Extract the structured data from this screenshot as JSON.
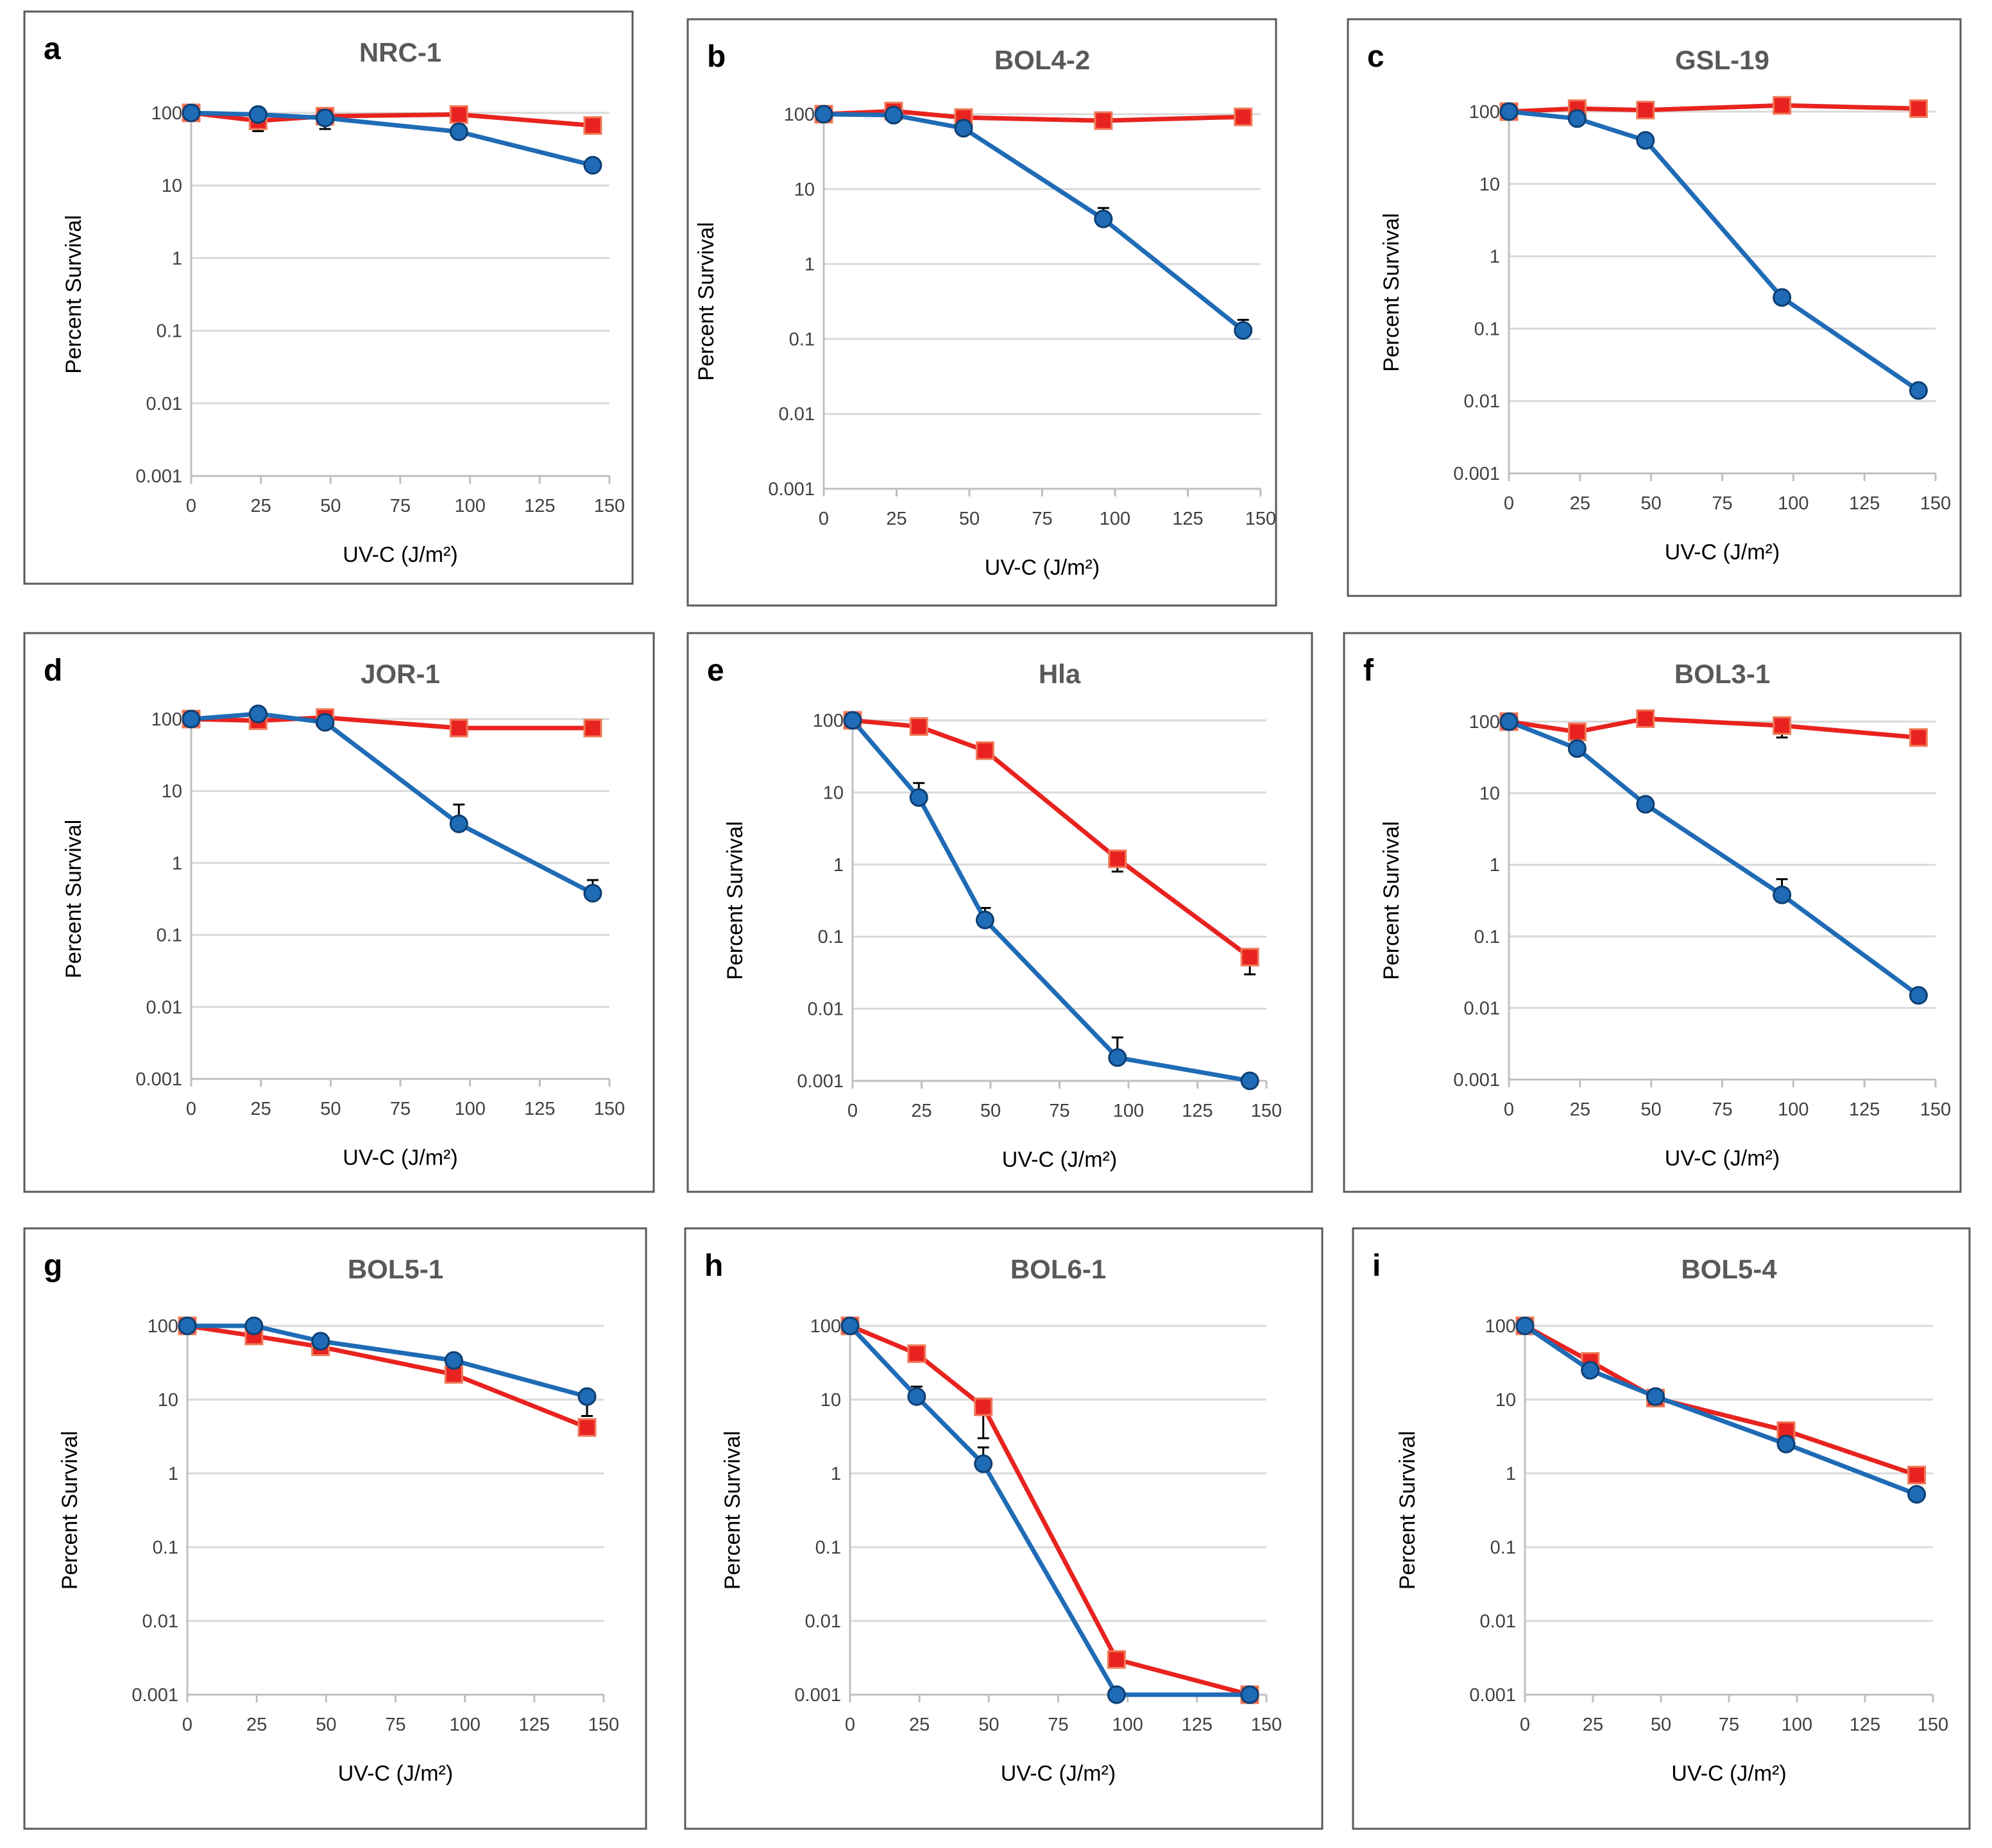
{
  "colors": {
    "series_1": "#e8231f",
    "series_2": "#1f6bb5",
    "square_edge": "#f07a5a",
    "circle_edge": "#0d3f73"
  },
  "common": {
    "xlabel": "UV-C (J/m²)",
    "ylabel": "Percent Survival"
  },
  "chart_data": [
    {
      "type": "line",
      "letter": "a",
      "title": "NRC-1",
      "x": [
        0,
        24,
        48,
        96,
        144
      ],
      "x_ticks": [
        "0",
        "25",
        "50",
        "75",
        "100",
        "125",
        "150"
      ],
      "xlim": [
        0,
        150
      ],
      "y_ticks": [
        "100",
        "10",
        "1",
        "0.1",
        "0.01",
        "0.001"
      ],
      "ylim": [
        0.001,
        100
      ],
      "yscale": "log",
      "xlabel": "UV-C (J/m²)",
      "ylabel": "Percent Survival",
      "series": [
        {
          "name": "squares",
          "marker": "square",
          "values": [
            100,
            78,
            90,
            95,
            67
          ],
          "errors_up": [
            0,
            0,
            0,
            0,
            0
          ],
          "errors_down": [
            0,
            22,
            0,
            0,
            0
          ]
        },
        {
          "name": "circles",
          "marker": "circle",
          "values": [
            100,
            95,
            85,
            55,
            19
          ],
          "errors_up": [
            0,
            0,
            0,
            0,
            0
          ],
          "errors_down": [
            0,
            0,
            25,
            0,
            0
          ]
        }
      ]
    },
    {
      "type": "line",
      "letter": "b",
      "title": "BOL4-2",
      "x": [
        0,
        24,
        48,
        96,
        144
      ],
      "x_ticks": [
        "0",
        "25",
        "50",
        "75",
        "100",
        "125",
        "150"
      ],
      "xlim": [
        0,
        150
      ],
      "y_ticks": [
        "100",
        "10",
        "1",
        "0.1",
        "0.01",
        "0.001"
      ],
      "ylim": [
        0.001,
        100
      ],
      "yscale": "log",
      "xlabel": "UV-C (J/m²)",
      "ylabel": "Percent Survival",
      "series": [
        {
          "name": "squares",
          "marker": "square",
          "values": [
            100,
            110,
            90,
            82,
            92
          ],
          "errors_up": [
            0,
            0,
            0,
            0,
            0
          ],
          "errors_down": [
            0,
            0,
            0,
            0,
            0
          ]
        },
        {
          "name": "circles",
          "marker": "circle",
          "values": [
            100,
            97,
            65,
            4,
            0.13
          ],
          "errors_up": [
            0,
            0,
            0,
            1.6,
            0.05
          ],
          "errors_down": [
            0,
            0,
            0,
            0,
            0
          ]
        }
      ]
    },
    {
      "type": "line",
      "letter": "c",
      "title": "GSL-19",
      "x": [
        0,
        24,
        48,
        96,
        144
      ],
      "x_ticks": [
        "0",
        "25",
        "50",
        "75",
        "100",
        "125",
        "150"
      ],
      "xlim": [
        0,
        150
      ],
      "y_ticks": [
        "100",
        "10",
        "1",
        "0.1",
        "0.01",
        "0.001"
      ],
      "ylim": [
        0.001,
        100
      ],
      "yscale": "log",
      "xlabel": "UV-C (J/m²)",
      "ylabel": "Percent Survival",
      "series": [
        {
          "name": "squares",
          "marker": "square",
          "values": [
            100,
            110,
            105,
            122,
            110
          ],
          "errors_up": [
            0,
            0,
            0,
            0,
            0
          ],
          "errors_down": [
            0,
            0,
            0,
            0,
            0
          ]
        },
        {
          "name": "circles",
          "marker": "circle",
          "values": [
            100,
            80,
            40,
            0.27,
            0.014
          ],
          "errors_up": [
            0,
            0,
            0,
            0,
            0.003
          ],
          "errors_down": [
            0,
            0,
            0,
            0,
            0
          ]
        }
      ]
    },
    {
      "type": "line",
      "letter": "d",
      "title": "JOR-1",
      "x": [
        0,
        24,
        48,
        96,
        144
      ],
      "x_ticks": [
        "0",
        "25",
        "50",
        "75",
        "100",
        "125",
        "150"
      ],
      "xlim": [
        0,
        150
      ],
      "y_ticks": [
        "100",
        "10",
        "1",
        "0.1",
        "0.01",
        "0.001"
      ],
      "ylim": [
        0.001,
        100
      ],
      "yscale": "log",
      "xlabel": "UV-C (J/m²)",
      "ylabel": "Percent Survival",
      "series": [
        {
          "name": "squares",
          "marker": "square",
          "values": [
            100,
            95,
            105,
            75,
            75
          ],
          "errors_up": [
            0,
            0,
            0,
            0,
            0
          ],
          "errors_down": [
            0,
            0,
            0,
            0,
            0
          ]
        },
        {
          "name": "circles",
          "marker": "circle",
          "values": [
            100,
            118,
            90,
            3.5,
            0.38
          ],
          "errors_up": [
            0,
            0,
            0,
            3,
            0.2
          ],
          "errors_down": [
            0,
            0,
            0,
            0,
            0
          ]
        }
      ]
    },
    {
      "type": "line",
      "letter": "e",
      "title": "Hla",
      "x": [
        0,
        24,
        48,
        96,
        144
      ],
      "x_ticks": [
        "0",
        "25",
        "50",
        "75",
        "100",
        "125",
        "150"
      ],
      "xlim": [
        0,
        150
      ],
      "y_ticks": [
        "100",
        "10",
        "1",
        "0.1",
        "0.01",
        "0.001"
      ],
      "ylim": [
        0.001,
        100
      ],
      "yscale": "log",
      "xlabel": "UV-C (J/m²)",
      "ylabel": "Percent Survival",
      "series": [
        {
          "name": "squares",
          "marker": "square",
          "values": [
            100,
            82,
            38,
            1.2,
            0.052
          ],
          "errors_up": [
            0,
            0,
            0,
            0,
            0
          ],
          "errors_down": [
            0,
            0,
            0,
            0.4,
            0.022
          ]
        },
        {
          "name": "circles",
          "marker": "circle",
          "values": [
            100,
            8.5,
            0.17,
            0.0021,
            0.001
          ],
          "errors_up": [
            0,
            5,
            0.08,
            0.0019,
            0
          ],
          "errors_down": [
            0,
            0,
            0,
            0,
            0
          ]
        }
      ]
    },
    {
      "type": "line",
      "letter": "f",
      "title": "BOL3-1",
      "x": [
        0,
        24,
        48,
        96,
        144
      ],
      "x_ticks": [
        "0",
        "25",
        "50",
        "75",
        "100",
        "125",
        "150"
      ],
      "xlim": [
        0,
        150
      ],
      "y_ticks": [
        "100",
        "10",
        "1",
        "0.1",
        "0.01",
        "0.001"
      ],
      "ylim": [
        0.001,
        100
      ],
      "yscale": "log",
      "xlabel": "UV-C (J/m²)",
      "ylabel": "Percent Survival",
      "series": [
        {
          "name": "squares",
          "marker": "square",
          "values": [
            100,
            72,
            110,
            88,
            60
          ],
          "errors_up": [
            0,
            0,
            0,
            0,
            0
          ],
          "errors_down": [
            0,
            0,
            0,
            28,
            0
          ]
        },
        {
          "name": "circles",
          "marker": "circle",
          "values": [
            100,
            42,
            7,
            0.38,
            0.015
          ],
          "errors_up": [
            0,
            0,
            0,
            0.25,
            0
          ],
          "errors_down": [
            0,
            0,
            0,
            0,
            0
          ]
        }
      ]
    },
    {
      "type": "line",
      "letter": "g",
      "title": "BOL5-1",
      "x": [
        0,
        24,
        48,
        96,
        144
      ],
      "x_ticks": [
        "0",
        "25",
        "50",
        "75",
        "100",
        "125",
        "150"
      ],
      "xlim": [
        0,
        150
      ],
      "y_ticks": [
        "100",
        "10",
        "1",
        "0.1",
        "0.01",
        "0.001"
      ],
      "ylim": [
        0.001,
        100
      ],
      "yscale": "log",
      "xlabel": "UV-C (J/m²)",
      "ylabel": "Percent Survival",
      "series": [
        {
          "name": "squares",
          "marker": "square",
          "values": [
            100,
            73,
            52,
            22,
            4.2
          ],
          "errors_up": [
            0,
            0,
            0,
            0,
            0
          ],
          "errors_down": [
            0,
            0,
            0,
            0,
            0
          ]
        },
        {
          "name": "circles",
          "marker": "circle",
          "values": [
            100,
            100,
            62,
            34,
            11
          ],
          "errors_up": [
            0,
            0,
            0,
            0,
            0
          ],
          "errors_down": [
            0,
            0,
            0,
            0,
            5
          ]
        }
      ]
    },
    {
      "type": "line",
      "letter": "h",
      "title": "BOL6-1",
      "x": [
        0,
        24,
        48,
        96,
        144
      ],
      "x_ticks": [
        "0",
        "25",
        "50",
        "75",
        "100",
        "125",
        "150"
      ],
      "xlim": [
        0,
        150
      ],
      "y_ticks": [
        "100",
        "10",
        "1",
        "0.1",
        "0.01",
        "0.001"
      ],
      "ylim": [
        0.001,
        100
      ],
      "yscale": "log",
      "xlabel": "UV-C (J/m²)",
      "ylabel": "Percent Survival",
      "series": [
        {
          "name": "squares",
          "marker": "square",
          "values": [
            100,
            42,
            8,
            0.003,
            0.001
          ],
          "errors_up": [
            0,
            0,
            0,
            0,
            0
          ],
          "errors_down": [
            0,
            0,
            5,
            0,
            0
          ]
        },
        {
          "name": "circles",
          "marker": "circle",
          "values": [
            100,
            11,
            1.35,
            0.001,
            0.001
          ],
          "errors_up": [
            0,
            4,
            0.9,
            0,
            0
          ],
          "errors_down": [
            0,
            0,
            0,
            0,
            0
          ]
        }
      ]
    },
    {
      "type": "line",
      "letter": "i",
      "title": "BOL5-4",
      "x": [
        0,
        24,
        48,
        96,
        144
      ],
      "x_ticks": [
        "0",
        "25",
        "50",
        "75",
        "100",
        "125",
        "150"
      ],
      "xlim": [
        0,
        150
      ],
      "y_ticks": [
        "100",
        "10",
        "1",
        "0.1",
        "0.01",
        "0.001"
      ],
      "ylim": [
        0.001,
        100
      ],
      "yscale": "log",
      "xlabel": "UV-C (J/m²)",
      "ylabel": "Percent Survival",
      "series": [
        {
          "name": "squares",
          "marker": "square",
          "values": [
            100,
            33,
            10.5,
            3.8,
            0.95
          ],
          "errors_up": [
            0,
            0,
            0,
            0,
            0
          ],
          "errors_down": [
            0,
            0,
            0,
            0,
            0
          ]
        },
        {
          "name": "circles",
          "marker": "circle",
          "values": [
            100,
            25,
            11,
            2.5,
            0.52
          ],
          "errors_up": [
            0,
            0,
            0,
            0,
            0
          ],
          "errors_down": [
            0,
            0,
            0,
            0,
            0
          ]
        }
      ]
    }
  ]
}
